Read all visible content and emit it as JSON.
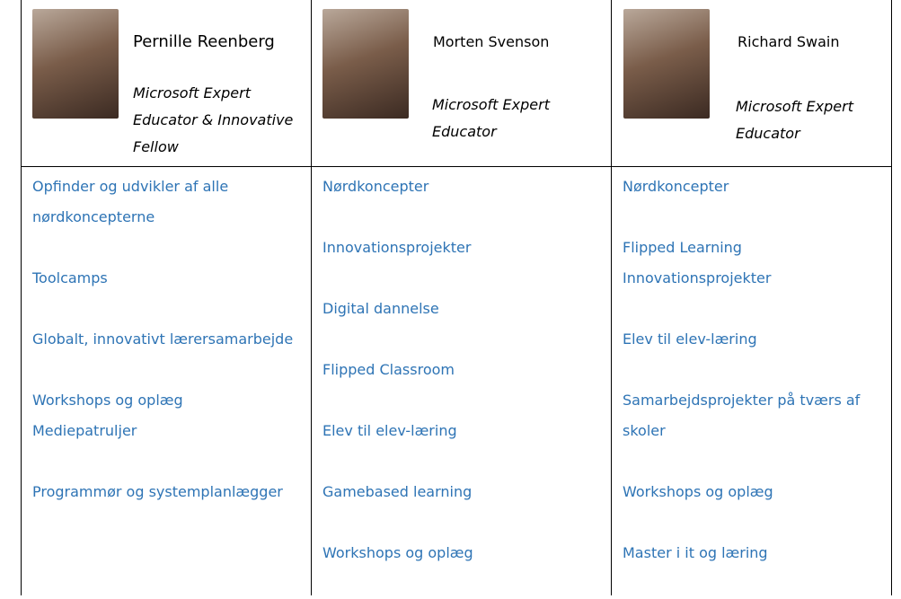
{
  "columns": [
    {
      "name": "Pernille Reenberg",
      "title": "Microsoft Expert Educator & Innovative Fellow",
      "items": [
        [
          "Opfinder og udvikler af alle nørdkoncepterne"
        ],
        [
          "Toolcamps"
        ],
        [
          "Globalt, innovativt lærersamarbejde"
        ],
        [
          "Workshops og oplæg",
          "Mediepatruljer"
        ],
        [
          "Programmør og systemplanlægger"
        ]
      ]
    },
    {
      "name": "Morten Svenson",
      "title": "Microsoft Expert Educator",
      "items": [
        [
          "Nørdkoncepter"
        ],
        [
          "Innovationsprojekter"
        ],
        [
          "Digital dannelse"
        ],
        [
          "Flipped Classroom"
        ],
        [
          "Elev til elev-læring"
        ],
        [
          "Gamebased learning"
        ],
        [
          "Workshops og oplæg"
        ]
      ]
    },
    {
      "name": "Richard Swain",
      "title": "Microsoft Expert Educator",
      "items": [
        [
          "Nørdkoncepter"
        ],
        [
          "Flipped Learning",
          "Innovationsprojekter"
        ],
        [
          "Elev til elev-læring"
        ],
        [
          "Samarbejdsprojekter på tværs af skoler"
        ],
        [
          "Workshops og oplæg"
        ],
        [
          "Master i it og læring"
        ]
      ]
    }
  ]
}
